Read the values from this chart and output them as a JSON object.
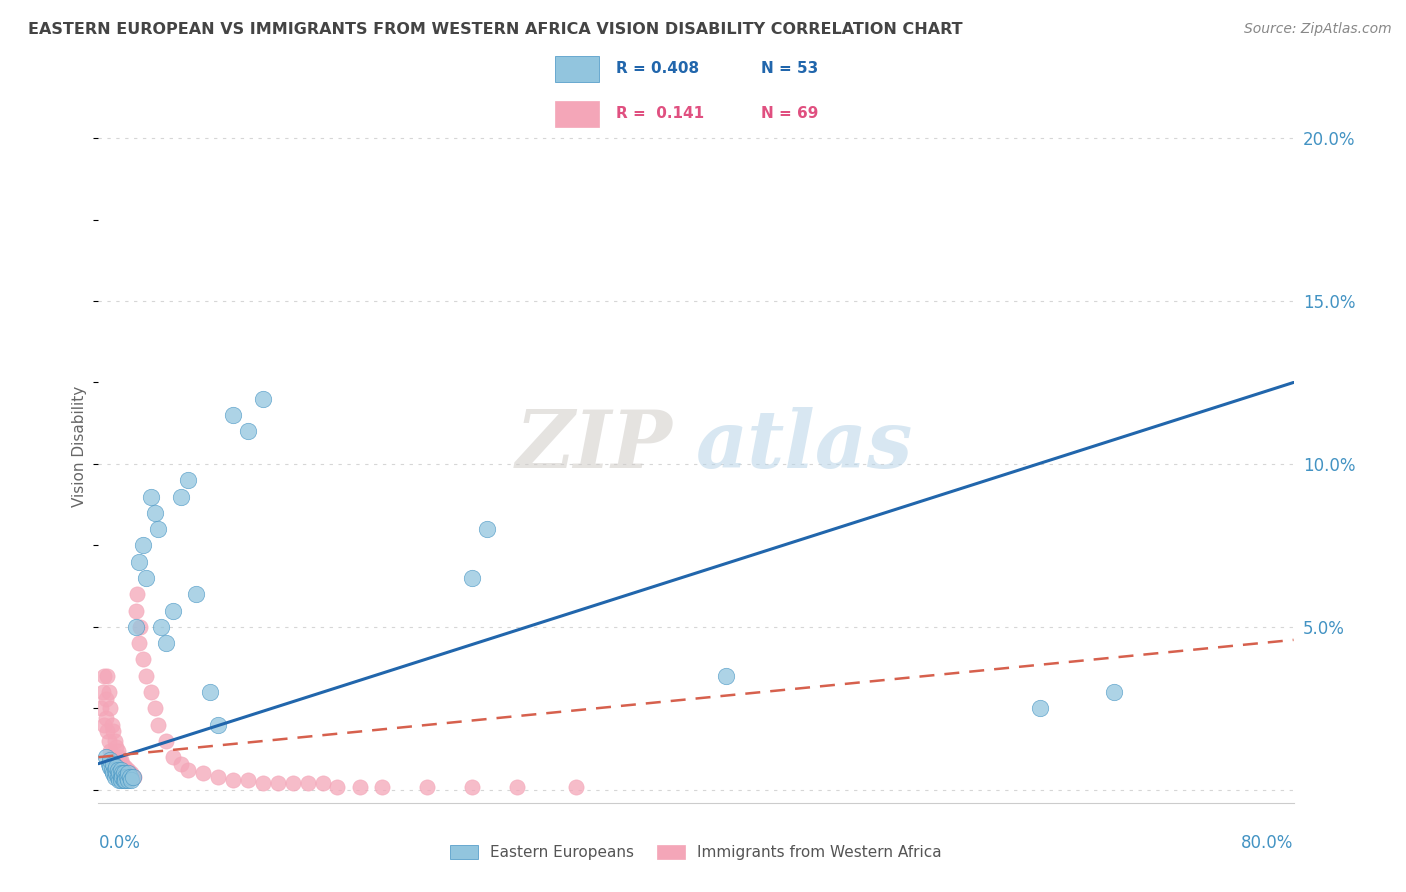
{
  "title": "EASTERN EUROPEAN VS IMMIGRANTS FROM WESTERN AFRICA VISION DISABILITY CORRELATION CHART",
  "source": "Source: ZipAtlas.com",
  "ylabel": "Vision Disability",
  "xmin": 0.0,
  "xmax": 0.8,
  "ymin": -0.004,
  "ymax": 0.215,
  "watermark": "ZIPatlas",
  "color_blue": "#92c5de",
  "color_pink": "#f4a6b8",
  "color_blue_dark": "#4393c3",
  "color_pink_dark": "#d6604d",
  "color_blue_line": "#2166ac",
  "color_pink_line": "#d6604d",
  "color_title": "#444444",
  "color_source": "#888888",
  "color_grid": "#cccccc",
  "color_axis_label": "#4393c3",
  "blue_trend_x0": 0.0,
  "blue_trend_x1": 0.8,
  "blue_trend_y0": 0.008,
  "blue_trend_y1": 0.125,
  "pink_trend_x0": 0.0,
  "pink_trend_x1": 0.8,
  "pink_trend_y0": 0.01,
  "pink_trend_y1": 0.046,
  "blue_scatter_x": [
    0.005,
    0.007,
    0.008,
    0.008,
    0.009,
    0.01,
    0.01,
    0.011,
    0.011,
    0.012,
    0.012,
    0.013,
    0.013,
    0.014,
    0.014,
    0.015,
    0.015,
    0.015,
    0.016,
    0.016,
    0.017,
    0.017,
    0.018,
    0.018,
    0.019,
    0.02,
    0.02,
    0.021,
    0.022,
    0.023,
    0.025,
    0.027,
    0.03,
    0.032,
    0.035,
    0.038,
    0.04,
    0.042,
    0.045,
    0.05,
    0.055,
    0.06,
    0.065,
    0.075,
    0.08,
    0.09,
    0.1,
    0.11,
    0.25,
    0.26,
    0.42,
    0.63,
    0.68
  ],
  "blue_scatter_y": [
    0.01,
    0.008,
    0.007,
    0.009,
    0.006,
    0.005,
    0.008,
    0.004,
    0.006,
    0.005,
    0.007,
    0.004,
    0.006,
    0.003,
    0.005,
    0.004,
    0.006,
    0.003,
    0.005,
    0.004,
    0.003,
    0.005,
    0.004,
    0.003,
    0.004,
    0.003,
    0.005,
    0.004,
    0.003,
    0.004,
    0.05,
    0.07,
    0.075,
    0.065,
    0.09,
    0.085,
    0.08,
    0.05,
    0.045,
    0.055,
    0.09,
    0.095,
    0.06,
    0.03,
    0.02,
    0.115,
    0.11,
    0.12,
    0.065,
    0.08,
    0.035,
    0.025,
    0.03
  ],
  "pink_scatter_x": [
    0.002,
    0.003,
    0.004,
    0.004,
    0.005,
    0.005,
    0.006,
    0.006,
    0.007,
    0.007,
    0.008,
    0.008,
    0.009,
    0.009,
    0.01,
    0.01,
    0.011,
    0.011,
    0.012,
    0.012,
    0.013,
    0.013,
    0.014,
    0.014,
    0.015,
    0.015,
    0.016,
    0.016,
    0.017,
    0.017,
    0.018,
    0.018,
    0.019,
    0.019,
    0.02,
    0.02,
    0.021,
    0.022,
    0.023,
    0.024,
    0.025,
    0.026,
    0.027,
    0.028,
    0.03,
    0.032,
    0.035,
    0.038,
    0.04,
    0.045,
    0.05,
    0.055,
    0.06,
    0.07,
    0.08,
    0.09,
    0.1,
    0.11,
    0.12,
    0.13,
    0.14,
    0.15,
    0.16,
    0.175,
    0.19,
    0.22,
    0.25,
    0.28,
    0.32
  ],
  "pink_scatter_y": [
    0.025,
    0.03,
    0.02,
    0.035,
    0.028,
    0.022,
    0.035,
    0.018,
    0.03,
    0.015,
    0.025,
    0.012,
    0.02,
    0.01,
    0.018,
    0.008,
    0.015,
    0.007,
    0.013,
    0.006,
    0.012,
    0.005,
    0.01,
    0.004,
    0.009,
    0.004,
    0.008,
    0.003,
    0.007,
    0.003,
    0.007,
    0.003,
    0.006,
    0.003,
    0.006,
    0.003,
    0.005,
    0.005,
    0.004,
    0.004,
    0.055,
    0.06,
    0.045,
    0.05,
    0.04,
    0.035,
    0.03,
    0.025,
    0.02,
    0.015,
    0.01,
    0.008,
    0.006,
    0.005,
    0.004,
    0.003,
    0.003,
    0.002,
    0.002,
    0.002,
    0.002,
    0.002,
    0.001,
    0.001,
    0.001,
    0.001,
    0.001,
    0.001,
    0.001
  ]
}
